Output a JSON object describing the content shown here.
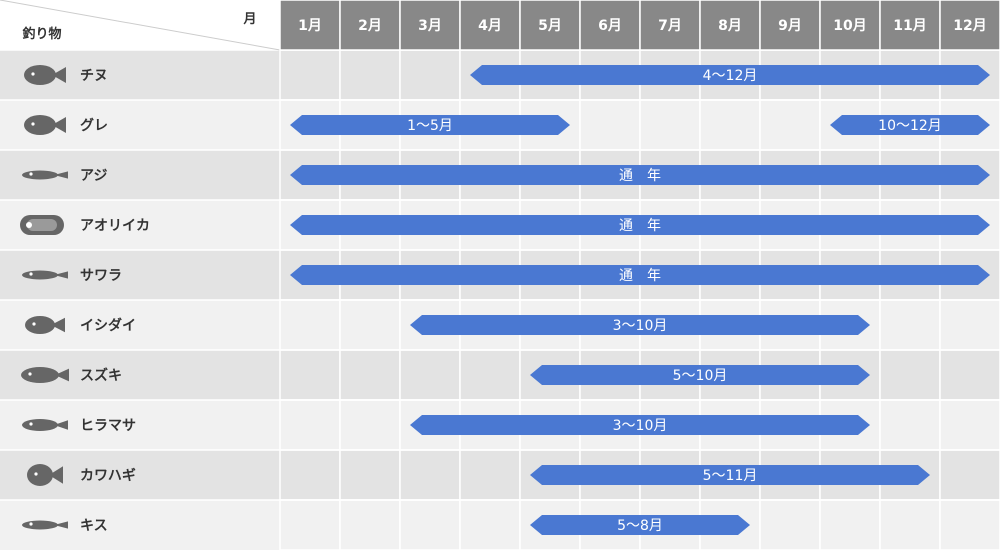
{
  "chart_data": {
    "type": "gantt",
    "corner_label_top": "月",
    "corner_label_bottom": "釣り物",
    "months": [
      "1月",
      "2月",
      "3月",
      "4月",
      "5月",
      "6月",
      "7月",
      "8月",
      "9月",
      "10月",
      "11月",
      "12月"
    ],
    "rows": [
      {
        "name": "チヌ",
        "icon": "black-porgy-icon",
        "bars": [
          {
            "start": 4,
            "end": 12,
            "label": "4～12月"
          }
        ]
      },
      {
        "name": "グレ",
        "icon": "girella-icon",
        "bars": [
          {
            "start": 1,
            "end": 5,
            "label": "1～5月"
          },
          {
            "start": 10,
            "end": 12,
            "label": "10～12月"
          }
        ]
      },
      {
        "name": "アジ",
        "icon": "horse-mackerel-icon",
        "bars": [
          {
            "start": 1,
            "end": 12,
            "label": "通　年"
          }
        ]
      },
      {
        "name": "アオリイカ",
        "icon": "squid-icon",
        "bars": [
          {
            "start": 1,
            "end": 12,
            "label": "通　年"
          }
        ]
      },
      {
        "name": "サワラ",
        "icon": "spanish-mackerel-icon",
        "bars": [
          {
            "start": 1,
            "end": 12,
            "label": "通　年"
          }
        ]
      },
      {
        "name": "イシダイ",
        "icon": "striped-beakfish-icon",
        "bars": [
          {
            "start": 3,
            "end": 10,
            "label": "3～10月"
          }
        ]
      },
      {
        "name": "スズキ",
        "icon": "sea-bass-icon",
        "bars": [
          {
            "start": 5,
            "end": 10,
            "label": "5～10月"
          }
        ]
      },
      {
        "name": "ヒラマサ",
        "icon": "yellowtail-amberjack-icon",
        "bars": [
          {
            "start": 3,
            "end": 10,
            "label": "3～10月"
          }
        ]
      },
      {
        "name": "カワハギ",
        "icon": "filefish-icon",
        "bars": [
          {
            "start": 5,
            "end": 11,
            "label": "5～11月"
          }
        ]
      },
      {
        "name": "キス",
        "icon": "sillago-icon",
        "bars": [
          {
            "start": 5,
            "end": 8,
            "label": "5～8月"
          }
        ]
      }
    ]
  },
  "colors": {
    "header_bg": "#888888",
    "header_text": "#ffffff",
    "row_dark": "#e3e3e3",
    "row_light": "#f1f1f1",
    "grid_line": "#ffffff",
    "bar": "#4a78d2",
    "bar_text": "#ffffff",
    "label_text": "#333333",
    "icon": "#666666"
  }
}
